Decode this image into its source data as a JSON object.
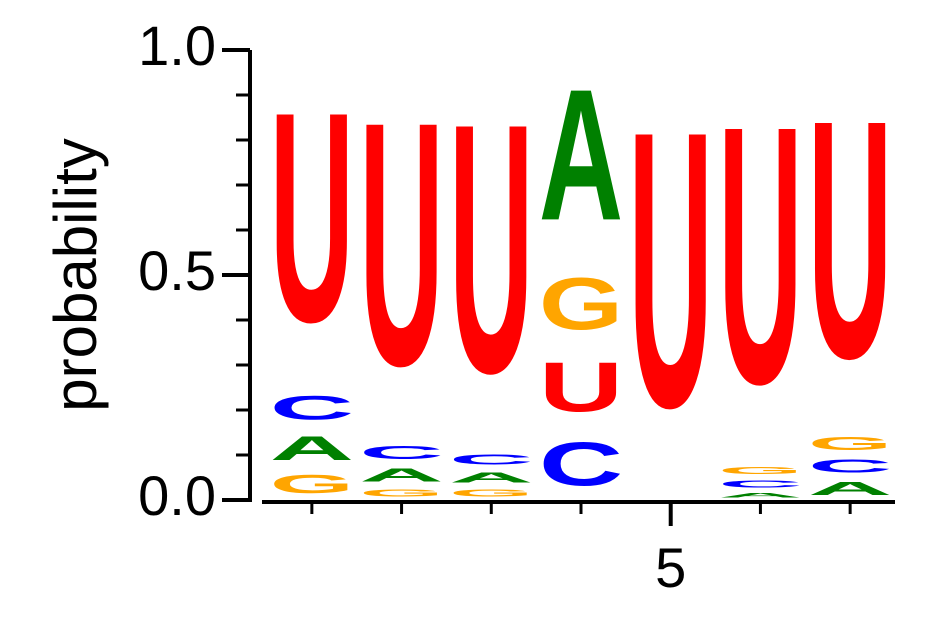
{
  "chart_data": {
    "type": "logo",
    "y_label": "probability",
    "categories": [
      1,
      2,
      3,
      4,
      5,
      6,
      7
    ],
    "series": [
      {
        "name": "A",
        "color": "#008000",
        "values": [
          0.09,
          0.05,
          0.04,
          0.47,
          0.005,
          0.02,
          0.05
        ]
      },
      {
        "name": "C",
        "color": "#0000ff",
        "values": [
          0.09,
          0.05,
          0.04,
          0.16,
          0.005,
          0.03,
          0.05
        ]
      },
      {
        "name": "G",
        "color": "#ffa500",
        "values": [
          0.07,
          0.03,
          0.03,
          0.19,
          0.005,
          0.03,
          0.05
        ]
      },
      {
        "name": "U",
        "color": "#ff0000",
        "values": [
          0.75,
          0.87,
          0.89,
          0.18,
          0.985,
          0.92,
          0.85
        ]
      }
    ],
    "xlim": [
      0.5,
      7.5
    ],
    "xticks": [
      5
    ],
    "xminorticks": [
      1,
      2,
      3,
      4,
      5,
      6,
      7
    ],
    "ylim": [
      0,
      1
    ],
    "yticks": [
      {
        "value": 0,
        "label": "0.0"
      },
      {
        "value": 0.5,
        "label": "0.5"
      },
      {
        "value": 1,
        "label": "1.0"
      }
    ],
    "yminorticks": [
      0.1,
      0.2,
      0.3,
      0.4,
      0.6,
      0.7,
      0.8,
      0.9
    ]
  }
}
